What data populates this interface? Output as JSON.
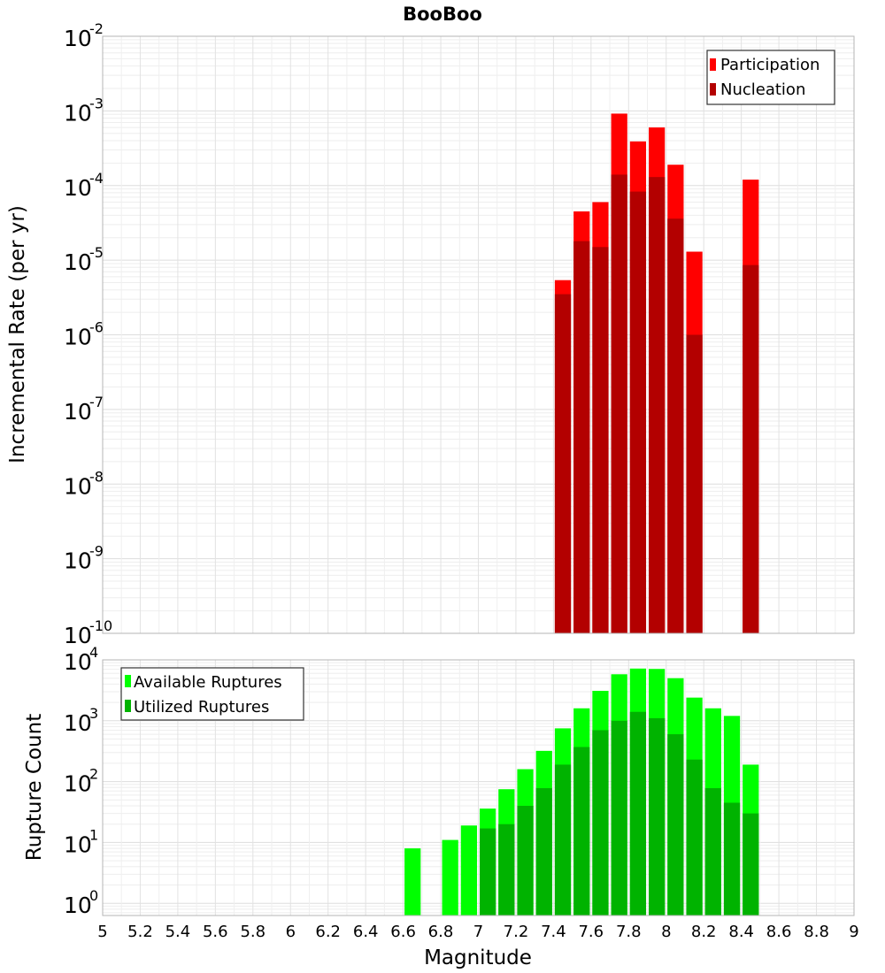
{
  "title": "BooBoo",
  "chart_data": [
    {
      "type": "bar",
      "scale": "log",
      "ylabel": "Incremental Rate (per yr)",
      "xlabel": "",
      "xlim": [
        5,
        9
      ],
      "ylim_exp": [
        -10,
        -2
      ],
      "bar_width": 0.1,
      "y_ticks": [
        {
          "base": "10",
          "exp": "-2",
          "value": -2
        },
        {
          "base": "10",
          "exp": "-3",
          "value": -3
        },
        {
          "base": "10",
          "exp": "-4",
          "value": -4
        },
        {
          "base": "10",
          "exp": "-5",
          "value": -5
        },
        {
          "base": "10",
          "exp": "-6",
          "value": -6
        },
        {
          "base": "10",
          "exp": "-7",
          "value": -7
        },
        {
          "base": "10",
          "exp": "-8",
          "value": -8
        },
        {
          "base": "10",
          "exp": "-9",
          "value": -9
        },
        {
          "base": "10",
          "exp": "-10",
          "value": -10
        }
      ],
      "legend": {
        "position": "top-right"
      },
      "series": [
        {
          "name": "Participation",
          "color": "#ff0000",
          "x": [
            7.45,
            7.55,
            7.65,
            7.75,
            7.85,
            7.95,
            8.05,
            8.15,
            8.45
          ],
          "values": [
            5.4e-06,
            4.5e-05,
            6e-05,
            0.00092,
            0.00039,
            0.0006,
            0.00019,
            1.3e-05,
            0.00012
          ]
        },
        {
          "name": "Nucleation",
          "color": "#b30000",
          "x": [
            7.45,
            7.55,
            7.65,
            7.75,
            7.85,
            7.95,
            8.05,
            8.15,
            8.45
          ],
          "values": [
            3.5e-06,
            1.8e-05,
            1.5e-05,
            0.00014,
            8.3e-05,
            0.00013,
            3.6e-05,
            1e-06,
            8.6e-06
          ]
        }
      ]
    },
    {
      "type": "bar",
      "scale": "log",
      "ylabel": "Rupture Count",
      "xlabel": "Magnitude",
      "xlim": [
        5,
        9
      ],
      "ylim_exp": [
        -0.2,
        4
      ],
      "bar_width": 0.1,
      "x_ticks": [
        "5",
        "5.2",
        "5.4",
        "5.6",
        "5.8",
        "6",
        "6.2",
        "6.4",
        "6.6",
        "6.8",
        "7",
        "7.2",
        "7.4",
        "7.6",
        "7.8",
        "8",
        "8.2",
        "8.4",
        "8.6",
        "8.8",
        "9"
      ],
      "y_ticks": [
        {
          "base": "10",
          "exp": "4",
          "value": 4
        },
        {
          "base": "10",
          "exp": "3",
          "value": 3
        },
        {
          "base": "10",
          "exp": "2",
          "value": 2
        },
        {
          "base": "10",
          "exp": "1",
          "value": 1
        },
        {
          "base": "10",
          "exp": "0",
          "value": 0
        }
      ],
      "legend": {
        "position": "top-left"
      },
      "series": [
        {
          "name": "Available Ruptures",
          "color": "#00ff00",
          "x": [
            6.65,
            6.85,
            6.95,
            7.05,
            7.15,
            7.25,
            7.35,
            7.45,
            7.55,
            7.65,
            7.75,
            7.85,
            7.95,
            8.05,
            8.15,
            8.25,
            8.35,
            8.45
          ],
          "values": [
            8,
            11,
            19,
            36,
            75,
            160,
            320,
            750,
            1600,
            3100,
            5800,
            7200,
            7100,
            5000,
            2400,
            1600,
            1200,
            190
          ]
        },
        {
          "name": "Utilized Ruptures",
          "color": "#00b300",
          "x": [
            7.05,
            7.15,
            7.25,
            7.35,
            7.45,
            7.55,
            7.65,
            7.75,
            7.85,
            7.95,
            8.05,
            8.15,
            8.25,
            8.35,
            8.45
          ],
          "values": [
            17,
            20,
            40,
            78,
            190,
            370,
            700,
            1000,
            1400,
            1100,
            600,
            230,
            78,
            45,
            30
          ]
        }
      ]
    }
  ]
}
